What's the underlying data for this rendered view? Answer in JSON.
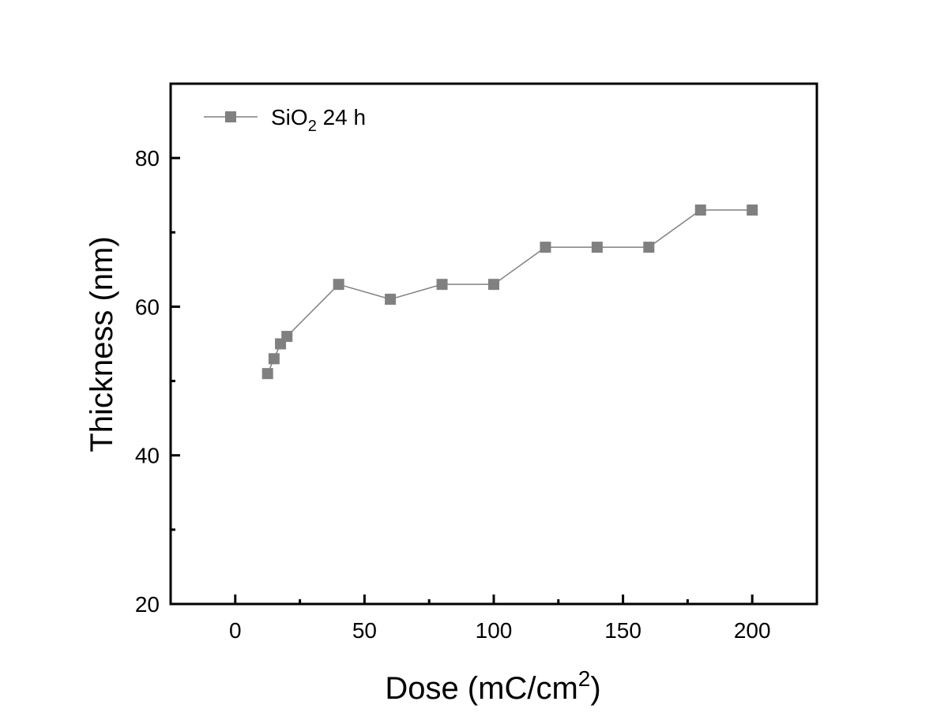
{
  "chart_data": {
    "type": "line",
    "xlabel": "Dose (mC/cm",
    "xlabel_sup": "2",
    "xlabel_end": ")",
    "ylabel": "Thickness (nm)",
    "xlim": [
      -25,
      225
    ],
    "ylim": [
      20,
      90
    ],
    "xticks": [
      0,
      50,
      100,
      150,
      200
    ],
    "xtick_labels": [
      "0",
      "50",
      "100",
      "150",
      "200"
    ],
    "yticks": [
      20,
      40,
      60,
      80
    ],
    "ytick_labels": [
      "20",
      "40",
      "60",
      "80"
    ],
    "grid": false,
    "legend_position": "top-left",
    "series": [
      {
        "name_main": "SiO",
        "name_sub": "2",
        "name_end": " 24 h",
        "color": "#808080",
        "marker": "square",
        "x": [
          12.5,
          15,
          17.5,
          20,
          40,
          60,
          80,
          100,
          120,
          140,
          160,
          180,
          200
        ],
        "y": [
          51,
          53,
          55,
          56,
          63,
          61,
          63,
          63,
          68,
          68,
          68,
          73,
          73
        ]
      }
    ]
  }
}
